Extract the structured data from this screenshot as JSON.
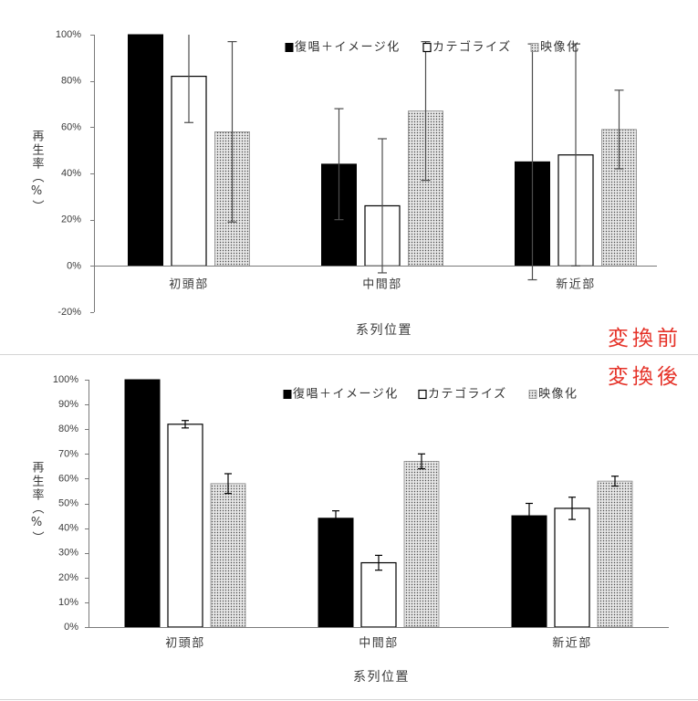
{
  "chart_data": [
    {
      "type": "bar",
      "annotation": "変換前",
      "categories": [
        "初頭部",
        "中間部",
        "新近部"
      ],
      "xlabel": "系列位置",
      "ylabel": "再生率（%）",
      "ylim": [
        -20,
        100
      ],
      "yticks": [
        -20,
        0,
        20,
        40,
        60,
        80,
        100
      ],
      "ytick_labels": [
        "-20%",
        "0%",
        "20%",
        "40%",
        "60%",
        "80%",
        "100%"
      ],
      "grid": false,
      "legend": "top",
      "error_bars": true,
      "series": [
        {
          "name": "復唱＋イメージ化",
          "values": [
            100,
            44,
            45
          ],
          "errors": [
            0,
            24,
            51
          ],
          "color": "#000000"
        },
        {
          "name": "カテゴライズ",
          "values": [
            82,
            26,
            48
          ],
          "errors": [
            20,
            29,
            48
          ],
          "color": "#ffffff"
        },
        {
          "name": "映像化",
          "values": [
            58,
            67,
            59
          ],
          "errors": [
            39,
            30,
            17
          ],
          "color": "#e6e6e6",
          "pattern": "dots"
        }
      ]
    },
    {
      "type": "bar",
      "annotation": "変換後",
      "categories": [
        "初頭部",
        "中間部",
        "新近部"
      ],
      "xlabel": "系列位置",
      "ylabel": "再生率（%）",
      "ylim": [
        0,
        100
      ],
      "yticks": [
        0,
        10,
        20,
        30,
        40,
        50,
        60,
        70,
        80,
        90,
        100
      ],
      "ytick_labels": [
        "0%",
        "10%",
        "20%",
        "30%",
        "40%",
        "50%",
        "60%",
        "70%",
        "80%",
        "90%",
        "100%"
      ],
      "grid": false,
      "legend": "top",
      "error_bars": true,
      "series": [
        {
          "name": "復唱＋イメージ化",
          "values": [
            100,
            44,
            45
          ],
          "errors": [
            0,
            3,
            5
          ],
          "color": "#000000"
        },
        {
          "name": "カテゴライズ",
          "values": [
            82,
            26,
            48
          ],
          "errors": [
            1.5,
            3,
            4.5
          ],
          "color": "#ffffff"
        },
        {
          "name": "映像化",
          "values": [
            58,
            67,
            59
          ],
          "errors": [
            4,
            3,
            2
          ],
          "color": "#e6e6e6",
          "pattern": "dots"
        }
      ]
    }
  ],
  "colors": {
    "annotation": "#e53228",
    "axis": "#7a7a7a",
    "text": "#3a3a3a",
    "dot_pattern_dots": "#4a4a4a"
  }
}
